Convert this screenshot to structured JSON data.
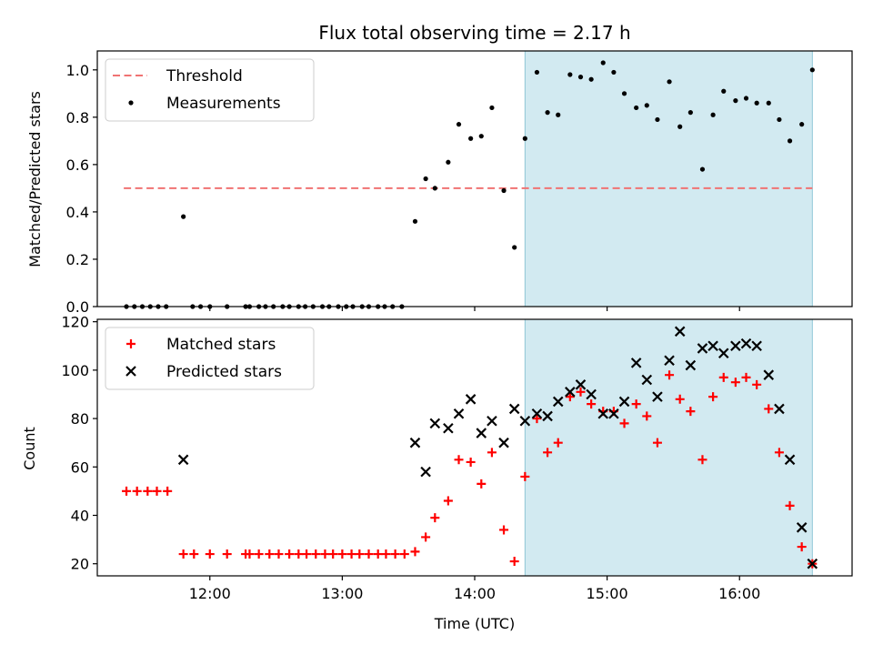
{
  "chart_data": [
    {
      "type": "scatter",
      "title": "Flux total observing time = 2.17 h",
      "xlabel": "",
      "ylabel": "Matched/Predicted stars",
      "xlim": [
        11.15,
        16.85
      ],
      "ylim": [
        0,
        1.08
      ],
      "yticks": [
        0.0,
        0.2,
        0.4,
        0.6,
        0.8,
        1.0
      ],
      "ytick_labels": [
        "0.0",
        "0.2",
        "0.4",
        "0.6",
        "0.8",
        "1.0"
      ],
      "shaded_region": [
        14.38,
        16.55
      ],
      "threshold": {
        "name": "Threshold",
        "y": 0.5,
        "x_range": [
          11.35,
          16.55
        ],
        "color": "#f07373"
      },
      "legend": [
        "Threshold",
        "Measurements"
      ],
      "series": [
        {
          "name": "Measurements",
          "color": "#000000",
          "points": [
            [
              11.37,
              0
            ],
            [
              11.43,
              0
            ],
            [
              11.49,
              0
            ],
            [
              11.55,
              0
            ],
            [
              11.61,
              0
            ],
            [
              11.67,
              0
            ],
            [
              11.8,
              0.38
            ],
            [
              11.87,
              0
            ],
            [
              11.93,
              0
            ],
            [
              12.0,
              0
            ],
            [
              12.13,
              0
            ],
            [
              12.27,
              0
            ],
            [
              12.3,
              0
            ],
            [
              12.37,
              0
            ],
            [
              12.42,
              0
            ],
            [
              12.48,
              0
            ],
            [
              12.55,
              0
            ],
            [
              12.6,
              0
            ],
            [
              12.67,
              0
            ],
            [
              12.72,
              0
            ],
            [
              12.78,
              0
            ],
            [
              12.85,
              0
            ],
            [
              12.9,
              0
            ],
            [
              12.97,
              0
            ],
            [
              13.03,
              0
            ],
            [
              13.08,
              0
            ],
            [
              13.15,
              0
            ],
            [
              13.2,
              0
            ],
            [
              13.27,
              0
            ],
            [
              13.32,
              0
            ],
            [
              13.38,
              0
            ],
            [
              13.45,
              0
            ],
            [
              13.55,
              0.36
            ],
            [
              13.63,
              0.54
            ],
            [
              13.7,
              0.5
            ],
            [
              13.8,
              0.61
            ],
            [
              13.88,
              0.77
            ],
            [
              13.97,
              0.71
            ],
            [
              14.05,
              0.72
            ],
            [
              14.13,
              0.84
            ],
            [
              14.22,
              0.49
            ],
            [
              14.3,
              0.25
            ],
            [
              14.38,
              0.71
            ],
            [
              14.47,
              0.99
            ],
            [
              14.55,
              0.82
            ],
            [
              14.63,
              0.81
            ],
            [
              14.72,
              0.98
            ],
            [
              14.8,
              0.97
            ],
            [
              14.88,
              0.96
            ],
            [
              14.97,
              1.03
            ],
            [
              15.05,
              0.99
            ],
            [
              15.13,
              0.9
            ],
            [
              15.22,
              0.84
            ],
            [
              15.3,
              0.85
            ],
            [
              15.38,
              0.79
            ],
            [
              15.47,
              0.95
            ],
            [
              15.55,
              0.76
            ],
            [
              15.63,
              0.82
            ],
            [
              15.72,
              0.58
            ],
            [
              15.8,
              0.81
            ],
            [
              15.88,
              0.91
            ],
            [
              15.97,
              0.87
            ],
            [
              16.05,
              0.88
            ],
            [
              16.13,
              0.86
            ],
            [
              16.22,
              0.86
            ],
            [
              16.3,
              0.79
            ],
            [
              16.38,
              0.7
            ],
            [
              16.47,
              0.77
            ],
            [
              16.55,
              1.0
            ]
          ]
        }
      ]
    },
    {
      "type": "scatter",
      "title": "",
      "xlabel": "Time (UTC)",
      "ylabel": "Count",
      "xlim": [
        11.15,
        16.85
      ],
      "ylim": [
        15,
        121
      ],
      "xticks": [
        12,
        13,
        14,
        15,
        16
      ],
      "xtick_labels": [
        "12:00",
        "13:00",
        "14:00",
        "15:00",
        "16:00"
      ],
      "yticks": [
        20,
        40,
        60,
        80,
        100,
        120
      ],
      "ytick_labels": [
        "20",
        "40",
        "60",
        "80",
        "100",
        "120"
      ],
      "shaded_region": [
        14.38,
        16.55
      ],
      "legend": [
        "Matched stars",
        "Predicted stars"
      ],
      "series": [
        {
          "name": "Matched stars",
          "marker": "plus",
          "color": "#ff0000",
          "points": [
            [
              11.37,
              50
            ],
            [
              11.45,
              50
            ],
            [
              11.53,
              50
            ],
            [
              11.6,
              50
            ],
            [
              11.68,
              50
            ],
            [
              11.8,
              24
            ],
            [
              11.88,
              24
            ],
            [
              12.0,
              24
            ],
            [
              12.13,
              24
            ],
            [
              12.27,
              24
            ],
            [
              12.3,
              24
            ],
            [
              12.37,
              24
            ],
            [
              12.45,
              24
            ],
            [
              12.52,
              24
            ],
            [
              12.6,
              24
            ],
            [
              12.67,
              24
            ],
            [
              12.73,
              24
            ],
            [
              12.8,
              24
            ],
            [
              12.87,
              24
            ],
            [
              12.93,
              24
            ],
            [
              13.0,
              24
            ],
            [
              13.07,
              24
            ],
            [
              13.13,
              24
            ],
            [
              13.2,
              24
            ],
            [
              13.27,
              24
            ],
            [
              13.33,
              24
            ],
            [
              13.4,
              24
            ],
            [
              13.47,
              24
            ],
            [
              13.55,
              25
            ],
            [
              13.63,
              31
            ],
            [
              13.7,
              39
            ],
            [
              13.8,
              46
            ],
            [
              13.88,
              63
            ],
            [
              13.97,
              62
            ],
            [
              14.05,
              53
            ],
            [
              14.13,
              66
            ],
            [
              14.22,
              34
            ],
            [
              14.3,
              21
            ],
            [
              14.38,
              56
            ],
            [
              14.47,
              80
            ],
            [
              14.55,
              66
            ],
            [
              14.63,
              70
            ],
            [
              14.72,
              89
            ],
            [
              14.8,
              91
            ],
            [
              14.88,
              86
            ],
            [
              14.97,
              83
            ],
            [
              15.05,
              83
            ],
            [
              15.13,
              78
            ],
            [
              15.22,
              86
            ],
            [
              15.3,
              81
            ],
            [
              15.38,
              70
            ],
            [
              15.47,
              98
            ],
            [
              15.55,
              88
            ],
            [
              15.63,
              83
            ],
            [
              15.72,
              63
            ],
            [
              15.8,
              89
            ],
            [
              15.88,
              97
            ],
            [
              15.97,
              95
            ],
            [
              16.05,
              97
            ],
            [
              16.13,
              94
            ],
            [
              16.22,
              84
            ],
            [
              16.3,
              66
            ],
            [
              16.38,
              44
            ],
            [
              16.47,
              27
            ],
            [
              16.55,
              20
            ]
          ]
        },
        {
          "name": "Predicted stars",
          "marker": "x",
          "color": "#000000",
          "points": [
            [
              11.8,
              63
            ],
            [
              13.55,
              70
            ],
            [
              13.63,
              58
            ],
            [
              13.7,
              78
            ],
            [
              13.8,
              76
            ],
            [
              13.88,
              82
            ],
            [
              13.97,
              88
            ],
            [
              14.05,
              74
            ],
            [
              14.13,
              79
            ],
            [
              14.22,
              70
            ],
            [
              14.3,
              84
            ],
            [
              14.38,
              79
            ],
            [
              14.47,
              82
            ],
            [
              14.55,
              81
            ],
            [
              14.63,
              87
            ],
            [
              14.72,
              91
            ],
            [
              14.8,
              94
            ],
            [
              14.88,
              90
            ],
            [
              14.97,
              82
            ],
            [
              15.05,
              82
            ],
            [
              15.13,
              87
            ],
            [
              15.22,
              103
            ],
            [
              15.3,
              96
            ],
            [
              15.38,
              89
            ],
            [
              15.47,
              104
            ],
            [
              15.55,
              116
            ],
            [
              15.63,
              102
            ],
            [
              15.72,
              109
            ],
            [
              15.8,
              110
            ],
            [
              15.88,
              107
            ],
            [
              15.97,
              110
            ],
            [
              16.05,
              111
            ],
            [
              16.13,
              110
            ],
            [
              16.22,
              98
            ],
            [
              16.3,
              84
            ],
            [
              16.38,
              63
            ],
            [
              16.47,
              35
            ],
            [
              16.55,
              20
            ]
          ]
        }
      ]
    }
  ]
}
